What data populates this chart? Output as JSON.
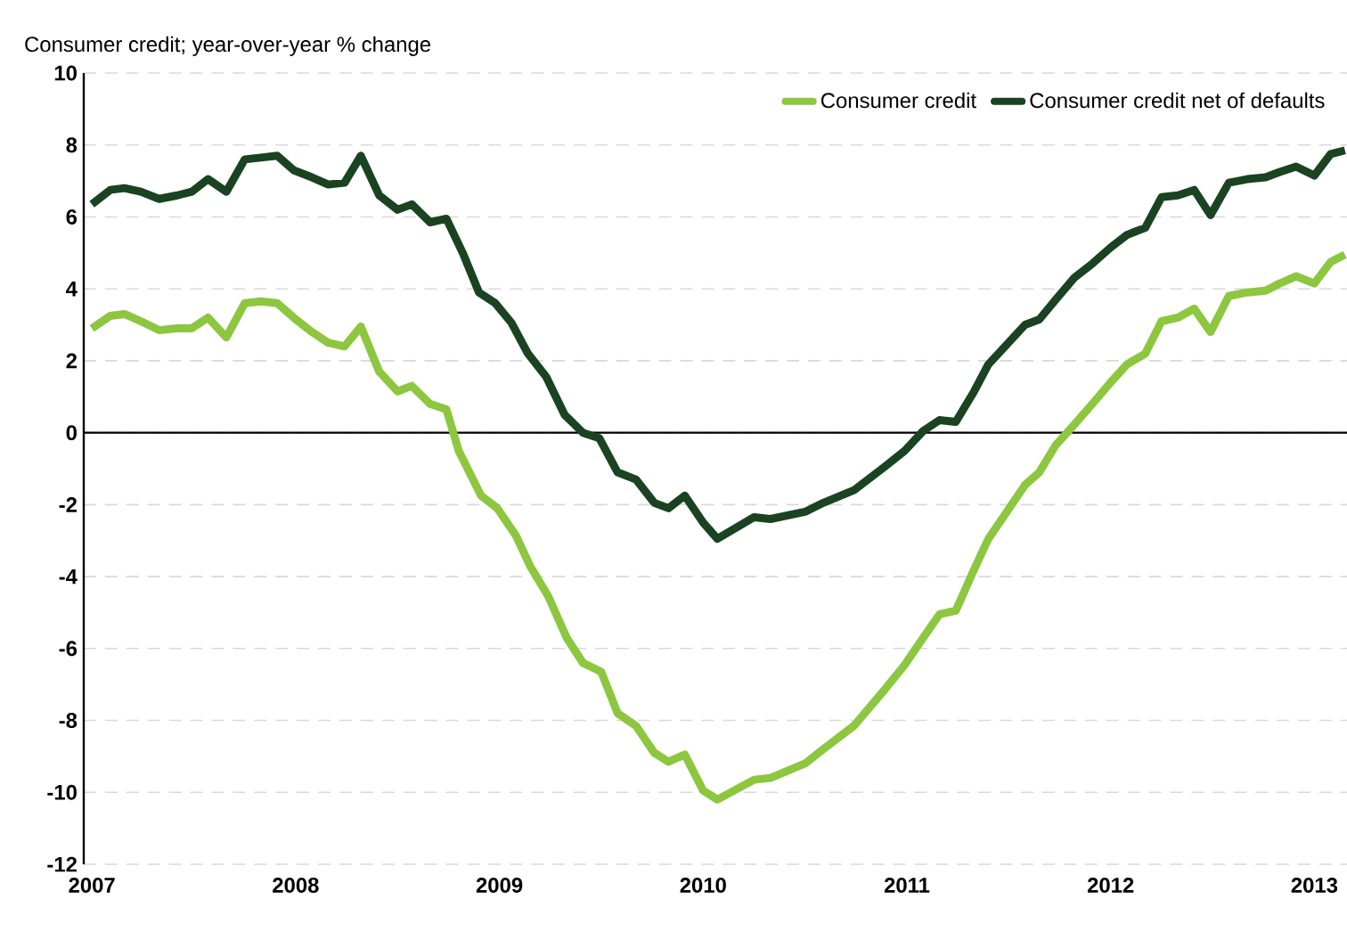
{
  "chart_data": {
    "type": "line",
    "ylabel": "Consumer credit; year-over-year % change",
    "xlim": [
      2006.96,
      2013.16
    ],
    "xticks": [
      {
        "value": 2007,
        "label": "2007"
      },
      {
        "value": 2008,
        "label": "2008"
      },
      {
        "value": 2009,
        "label": "2009"
      },
      {
        "value": 2010,
        "label": "2010"
      },
      {
        "value": 2011,
        "label": "2011"
      },
      {
        "value": 2012,
        "label": "2012"
      },
      {
        "value": 2013,
        "label": "2013"
      }
    ],
    "ylim": [
      -12,
      10
    ],
    "yticks": [
      -12,
      -10,
      -8,
      -6,
      -4,
      -2,
      0,
      2,
      4,
      6,
      8,
      10
    ],
    "grid": "y",
    "legend": "top right",
    "line_style": "solid",
    "marker": "none",
    "ref_lines": [
      {
        "axis": "y",
        "value": 0,
        "color": "#000000"
      }
    ],
    "series": [
      {
        "name": "Consumer credit",
        "color": "#8dc63f",
        "x": [
          2007.0,
          2007.09,
          2007.16,
          2007.24,
          2007.33,
          2007.42,
          2007.49,
          2007.57,
          2007.66,
          2007.75,
          2007.83,
          2007.91,
          2007.99,
          2008.08,
          2008.16,
          2008.24,
          2008.32,
          2008.41,
          2008.5,
          2008.57,
          2008.66,
          2008.74,
          2008.8,
          2008.91,
          2008.99,
          2009.08,
          2009.15,
          2009.24,
          2009.33,
          2009.41,
          2009.5,
          2009.58,
          2009.67,
          2009.76,
          2009.83,
          2009.91,
          2010.0,
          2010.07,
          2010.25,
          2010.33,
          2010.5,
          2010.59,
          2010.74,
          2010.89,
          2010.99,
          2011.08,
          2011.16,
          2011.24,
          2011.33,
          2011.4,
          2011.49,
          2011.58,
          2011.65,
          2011.73,
          2011.81,
          2011.91,
          2012.0,
          2012.08,
          2012.17,
          2012.25,
          2012.33,
          2012.41,
          2012.49,
          2012.58,
          2012.67,
          2012.76,
          2012.83,
          2012.91,
          2013.0,
          2013.08,
          2013.15
        ],
        "values": [
          2.9,
          3.25,
          3.3,
          3.1,
          2.85,
          2.9,
          2.9,
          3.2,
          2.65,
          3.6,
          3.65,
          3.6,
          3.2,
          2.8,
          2.5,
          2.4,
          2.95,
          1.7,
          1.15,
          1.3,
          0.8,
          0.65,
          -0.5,
          -1.75,
          -2.1,
          -2.85,
          -3.7,
          -4.55,
          -5.7,
          -6.4,
          -6.65,
          -7.8,
          -8.15,
          -8.9,
          -9.15,
          -8.95,
          -9.95,
          -10.2,
          -9.65,
          -9.6,
          -9.2,
          -8.8,
          -8.15,
          -7.15,
          -6.45,
          -5.7,
          -5.05,
          -4.95,
          -3.8,
          -2.95,
          -2.2,
          -1.45,
          -1.1,
          -0.35,
          0.15,
          0.8,
          1.4,
          1.9,
          2.2,
          3.1,
          3.2,
          3.45,
          2.8,
          3.8,
          3.9,
          3.95,
          4.15,
          4.35,
          4.15,
          4.75,
          4.95
        ]
      },
      {
        "name": "Consumer credit net of defaults",
        "color": "#1a4321",
        "x": [
          2007.0,
          2007.09,
          2007.16,
          2007.24,
          2007.33,
          2007.42,
          2007.49,
          2007.57,
          2007.66,
          2007.75,
          2007.83,
          2007.91,
          2007.99,
          2008.08,
          2008.16,
          2008.24,
          2008.32,
          2008.41,
          2008.5,
          2008.57,
          2008.66,
          2008.74,
          2008.82,
          2008.9,
          2008.98,
          2009.06,
          2009.14,
          2009.23,
          2009.32,
          2009.41,
          2009.49,
          2009.58,
          2009.67,
          2009.76,
          2009.83,
          2009.91,
          2010.0,
          2010.07,
          2010.25,
          2010.33,
          2010.5,
          2010.59,
          2010.74,
          2010.89,
          2010.99,
          2011.08,
          2011.16,
          2011.24,
          2011.33,
          2011.4,
          2011.49,
          2011.58,
          2011.65,
          2011.73,
          2011.82,
          2011.91,
          2012.0,
          2012.08,
          2012.17,
          2012.25,
          2012.33,
          2012.41,
          2012.49,
          2012.58,
          2012.67,
          2012.76,
          2012.83,
          2012.91,
          2013.0,
          2013.08,
          2013.15
        ],
        "values": [
          6.35,
          6.75,
          6.8,
          6.7,
          6.5,
          6.6,
          6.7,
          7.05,
          6.7,
          7.6,
          7.65,
          7.7,
          7.3,
          7.1,
          6.9,
          6.95,
          7.7,
          6.6,
          6.2,
          6.35,
          5.85,
          5.95,
          5.0,
          3.9,
          3.6,
          3.05,
          2.2,
          1.55,
          0.5,
          0.0,
          -0.15,
          -1.1,
          -1.3,
          -1.95,
          -2.1,
          -1.75,
          -2.5,
          -2.95,
          -2.35,
          -2.4,
          -2.2,
          -1.95,
          -1.6,
          -0.95,
          -0.5,
          0.05,
          0.35,
          0.3,
          1.15,
          1.9,
          2.45,
          3.0,
          3.15,
          3.7,
          4.3,
          4.7,
          5.15,
          5.5,
          5.7,
          6.55,
          6.6,
          6.75,
          6.05,
          6.95,
          7.05,
          7.1,
          7.25,
          7.4,
          7.15,
          7.75,
          7.85
        ]
      }
    ]
  }
}
